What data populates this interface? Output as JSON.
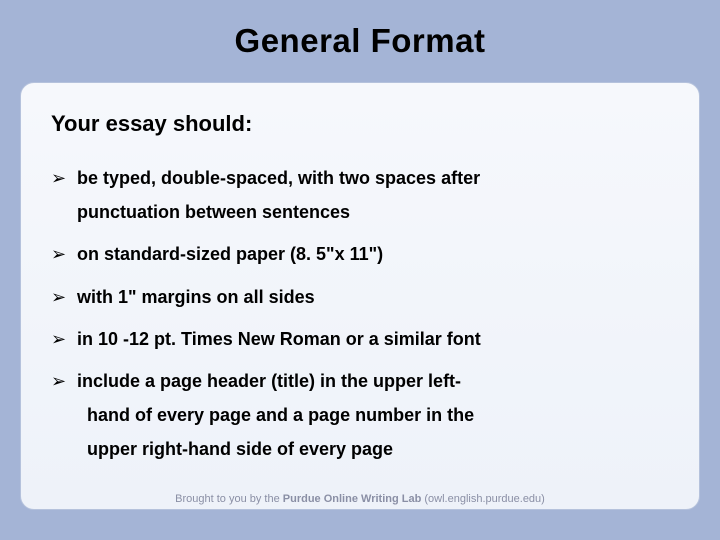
{
  "title": "General Format",
  "title_fontsize": 33,
  "subtitle": "Your essay should:",
  "subtitle_fontsize": 22,
  "bullet_marker": "➢",
  "bullet_fontsize": 18,
  "bullets": [
    {
      "lines": [
        "be typed, double-spaced, with two spaces after",
        "punctuation between sentences"
      ]
    },
    {
      "lines": [
        "on standard-sized paper (8. 5\"x 11\")"
      ]
    },
    {
      "lines": [
        "with 1\" margins on all sides"
      ]
    },
    {
      "lines": [
        "in 10 -12 pt. Times New Roman or a similar font"
      ]
    },
    {
      "lines": [
        "include  a page header (title) in the upper left-",
        "hand of every page and a page number in the",
        "upper right-hand side of every page"
      ]
    }
  ],
  "footer": {
    "prefix": "Brought to you by the ",
    "strong": "Purdue Online Writing Lab",
    "suffix": " (owl.english.purdue.edu)"
  },
  "colors": {
    "page_background": "#a4b4d6",
    "box_bg_top": "#f6f8fc",
    "box_bg_bottom": "#eef2f9",
    "box_border": "#b5c2dc",
    "text": "#000000",
    "footer_text": "#8a8fa5"
  }
}
